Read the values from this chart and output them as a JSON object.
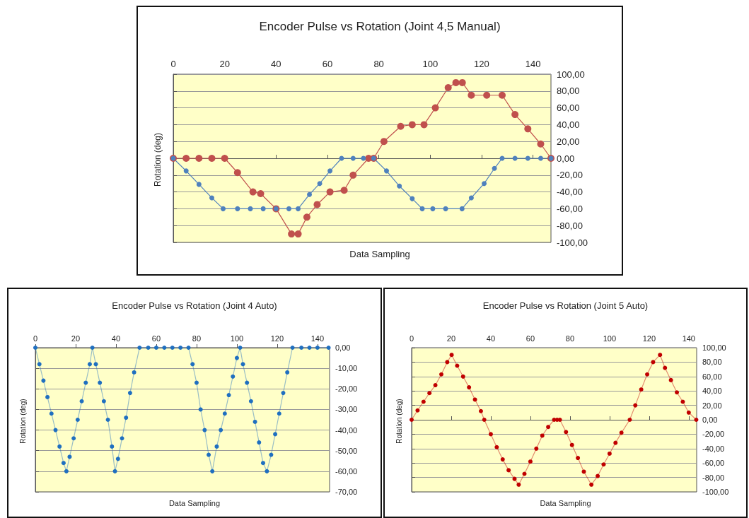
{
  "chart_data": [
    {
      "type": "line",
      "title": "Encoder Pulse vs Rotation (Joint 4,5 Manual)",
      "xlabel": "Data Sampling",
      "ylabel": "Rotation (deg)",
      "xlim": [
        0,
        147
      ],
      "xticks": [
        0,
        20,
        40,
        60,
        80,
        100,
        120,
        140
      ],
      "ylim": [
        -100,
        100
      ],
      "yticks": [
        {
          "value": -100,
          "label": "-100,00"
        },
        {
          "value": -80,
          "label": "-80,00"
        },
        {
          "value": -60,
          "label": "-60,00"
        },
        {
          "value": -40,
          "label": "-40,00"
        },
        {
          "value": -20,
          "label": "-20,00"
        },
        {
          "value": 0,
          "label": "0,00"
        },
        {
          "value": 20,
          "label": "20,00"
        },
        {
          "value": 40,
          "label": "40,00"
        },
        {
          "value": 60,
          "label": "60,00"
        },
        {
          "value": 80,
          "label": "80,00"
        },
        {
          "value": 100,
          "label": "100,00"
        }
      ],
      "grid": "y",
      "marker": "circle",
      "series": [
        {
          "color": "#c0504d",
          "x": [
            0,
            5,
            10,
            15,
            20,
            25,
            31,
            34,
            40,
            46,
            48.6,
            52,
            56,
            61,
            66.5,
            70,
            76,
            78,
            82,
            88.5,
            93,
            97.6,
            102,
            107,
            110,
            112.5,
            116,
            122,
            128,
            133,
            138,
            143,
            147
          ],
          "values": [
            0,
            0,
            0,
            0,
            0,
            -17,
            -40,
            -42,
            -60,
            -90,
            -90,
            -70,
            -55,
            -40,
            -38,
            -20,
            0,
            0,
            20,
            38,
            40,
            40,
            60,
            84,
            90,
            90,
            75,
            75,
            75,
            52,
            35,
            17,
            0
          ]
        },
        {
          "color": "#4f81bd",
          "x": [
            0,
            5,
            10,
            15,
            19.4,
            25,
            30,
            35,
            40,
            45,
            48.6,
            53,
            57,
            61,
            65.5,
            70,
            74,
            78,
            83,
            88,
            93,
            96.9,
            101,
            106,
            112.4,
            116,
            121,
            125,
            128,
            133,
            138,
            143,
            147
          ],
          "values": [
            0,
            -15,
            -31,
            -47,
            -60,
            -60,
            -60,
            -60,
            -60,
            -60,
            -60,
            -43,
            -30,
            -15,
            0,
            0,
            0,
            0,
            -15,
            -33,
            -48,
            -60,
            -60,
            -60,
            -60,
            -47,
            -30,
            -12,
            0,
            0,
            0,
            0,
            0
          ]
        }
      ]
    },
    {
      "type": "line",
      "title": "Encoder Pulse vs Rotation (Joint 4 Auto)",
      "xlabel": "Data Sampling",
      "ylabel": "Rotation (deg)",
      "xlim": [
        0,
        146
      ],
      "xticks": [
        0,
        20,
        40,
        60,
        80,
        100,
        120,
        140
      ],
      "ylim": [
        -70,
        0
      ],
      "yticks": [
        {
          "value": -70,
          "label": "-70,00"
        },
        {
          "value": -60,
          "label": "-60,00"
        },
        {
          "value": -50,
          "label": "-50,00"
        },
        {
          "value": -40,
          "label": "-40,00"
        },
        {
          "value": -30,
          "label": "-30,00"
        },
        {
          "value": -20,
          "label": "-20,00"
        },
        {
          "value": -10,
          "label": "-10,00"
        },
        {
          "value": 0,
          "label": "0,00"
        }
      ],
      "grid": "y",
      "marker": "circle",
      "series": [
        {
          "color": "#1f6fc0",
          "x": [
            0,
            2,
            4,
            6,
            8,
            10,
            12,
            14,
            15.4,
            17,
            19,
            21,
            23,
            25,
            27,
            28.3,
            30,
            32,
            34,
            36,
            38,
            39.5,
            41,
            43,
            45,
            47,
            49,
            51.7,
            56,
            60,
            64,
            68,
            72,
            76,
            78,
            80,
            82,
            84,
            86,
            87.8,
            90,
            92,
            94,
            96,
            98,
            100,
            101.6,
            103,
            105,
            107,
            109,
            111,
            113,
            114.9,
            117,
            119,
            121,
            123,
            125,
            127.6,
            132,
            136,
            140,
            145.5
          ],
          "values": [
            0,
            -8,
            -16,
            -24,
            -32,
            -40,
            -48,
            -56,
            -60,
            -53,
            -44,
            -35,
            -26,
            -17,
            -8,
            0,
            -8,
            -17,
            -26,
            -35,
            -48,
            -60,
            -54,
            -44,
            -34,
            -22,
            -12,
            0,
            0,
            0,
            0,
            0,
            0,
            0,
            -8,
            -17,
            -30,
            -40,
            -52,
            -60,
            -48,
            -40,
            -32,
            -23,
            -14,
            -5,
            0,
            -8,
            -17,
            -26,
            -36,
            -46,
            -56,
            -60,
            -52,
            -42,
            -32,
            -22,
            -12,
            0,
            0,
            0,
            0,
            0
          ]
        }
      ]
    },
    {
      "type": "line",
      "title": "Encoder Pulse vs Rotation (Joint 5 Auto)",
      "xlabel": "Data Sampling",
      "ylabel": "Rotation (deg)",
      "xlim": [
        0,
        144
      ],
      "xticks": [
        0,
        20,
        40,
        60,
        80,
        100,
        120,
        140
      ],
      "ylim": [
        -100,
        100
      ],
      "yticks": [
        {
          "value": -100,
          "label": "-100,00"
        },
        {
          "value": -80,
          "label": "-80,00"
        },
        {
          "value": -60,
          "label": "-60,00"
        },
        {
          "value": -40,
          "label": "-40,00"
        },
        {
          "value": -20,
          "label": "-20,00"
        },
        {
          "value": 0,
          "label": "0,00"
        },
        {
          "value": 20,
          "label": "20,00"
        },
        {
          "value": 40,
          "label": "40,00"
        },
        {
          "value": 60,
          "label": "60,00"
        },
        {
          "value": 80,
          "label": "80,00"
        },
        {
          "value": 100,
          "label": "100,00"
        }
      ],
      "grid": "y",
      "marker": "circle",
      "series": [
        {
          "color": "#c00000",
          "x": [
            0,
            3,
            6,
            9,
            12,
            15,
            18,
            20.2,
            23,
            26,
            29,
            32,
            35,
            36.7,
            40,
            43,
            46,
            49,
            52,
            54.1,
            57,
            60,
            63,
            66,
            69,
            72,
            73.5,
            74.9,
            78,
            81,
            84,
            87,
            90.8,
            94,
            97,
            100,
            103,
            106,
            110.2,
            113,
            116,
            119,
            122,
            125.5,
            128,
            131,
            134,
            137,
            140,
            143.8
          ],
          "values": [
            0,
            13,
            25,
            37,
            48,
            63,
            80,
            90,
            75,
            60,
            45,
            28,
            12,
            0,
            -20,
            -38,
            -55,
            -70,
            -82,
            -90,
            -75,
            -58,
            -40,
            -22,
            -10,
            0,
            0,
            0,
            -17,
            -35,
            -53,
            -72,
            -90,
            -78,
            -62,
            -47,
            -32,
            -18,
            0,
            20,
            42,
            63,
            80,
            90,
            72,
            55,
            38,
            25,
            10,
            0
          ]
        }
      ]
    }
  ]
}
